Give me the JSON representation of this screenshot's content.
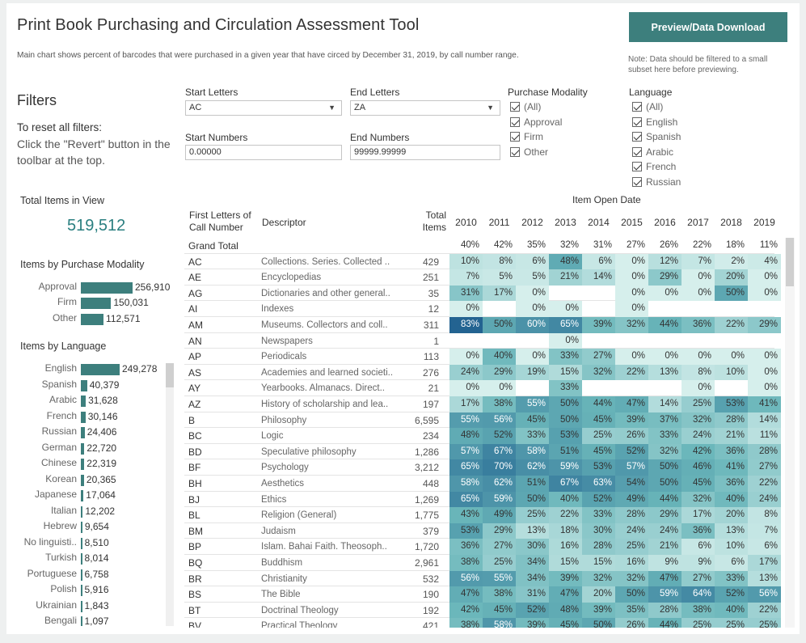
{
  "header": {
    "title": "Print Book Purchasing and Circulation Assessment Tool",
    "subtitle": "Main chart shows percent of barcodes that were purchased in a given year that have circed by December 31, 2019, by call number range.",
    "button_label": "Preview/Data Download",
    "note": "Note: Data should be filtered to a small subset here before previewing."
  },
  "filters": {
    "heading": "Filters",
    "reset_heading": "To reset all filters:",
    "reset_text": "Click the \"Revert\" button in the toolbar at the top.",
    "start_letters_label": "Start Letters",
    "start_letters_value": "AC",
    "end_letters_label": "End Letters",
    "end_letters_value": "ZA",
    "start_numbers_label": "Start Numbers",
    "start_numbers_value": "0.00000",
    "end_numbers_label": "End Numbers",
    "end_numbers_value": "99999.99999",
    "purchase_modality_label": "Purchase Modality",
    "purchase_modality_options": [
      "(All)",
      "Approval",
      "Firm",
      "Other"
    ],
    "language_label": "Language",
    "language_options": [
      "(All)",
      "English",
      "Spanish",
      "Arabic",
      "French",
      "Russian"
    ]
  },
  "summary": {
    "total_items_heading": "Total Items in View",
    "total_items_value": "519,512",
    "modality_heading": "Items by Purchase Modality",
    "modality": [
      {
        "label": "Approval",
        "value": "256,910",
        "n": 256910
      },
      {
        "label": "Firm",
        "value": "150,031",
        "n": 150031
      },
      {
        "label": "Other",
        "value": "112,571",
        "n": 112571
      }
    ],
    "language_heading": "Items by Language",
    "languages": [
      {
        "label": "English",
        "value": "249,278",
        "n": 249278
      },
      {
        "label": "Spanish",
        "value": "40,379",
        "n": 40379
      },
      {
        "label": "Arabic",
        "value": "31,628",
        "n": 31628
      },
      {
        "label": "French",
        "value": "30,146",
        "n": 30146
      },
      {
        "label": "Russian",
        "value": "24,406",
        "n": 24406
      },
      {
        "label": "German",
        "value": "22,720",
        "n": 22720
      },
      {
        "label": "Chinese",
        "value": "22,319",
        "n": 22319
      },
      {
        "label": "Korean",
        "value": "20,365",
        "n": 20365
      },
      {
        "label": "Japanese",
        "value": "17,064",
        "n": 17064
      },
      {
        "label": "Italian",
        "value": "12,202",
        "n": 12202
      },
      {
        "label": "Hebrew",
        "value": "9,654",
        "n": 9654
      },
      {
        "label": "No linguisti..",
        "value": "8,510",
        "n": 8510
      },
      {
        "label": "Turkish",
        "value": "8,014",
        "n": 8014
      },
      {
        "label": "Portuguese",
        "value": "6,758",
        "n": 6758
      },
      {
        "label": "Polish",
        "value": "5,916",
        "n": 5916
      },
      {
        "label": "Ukrainian",
        "value": "1,843",
        "n": 1843
      },
      {
        "label": "Bengali",
        "value": "1,097",
        "n": 1097
      }
    ]
  },
  "table": {
    "group_heading": "Item Open Date",
    "col_first_letters": "First Letters of Call Number",
    "col_descriptor": "Descriptor",
    "col_total": "Total Items",
    "years": [
      "2010",
      "2011",
      "2012",
      "2013",
      "2014",
      "2015",
      "2016",
      "2017",
      "2018",
      "2019"
    ],
    "grand_total": {
      "label": "Grand Total",
      "values": [
        "40%",
        "42%",
        "35%",
        "32%",
        "31%",
        "27%",
        "26%",
        "22%",
        "18%",
        "11%"
      ]
    },
    "rows": [
      {
        "code": "AC",
        "desc": "Collections. Series. Collected ..",
        "total": "429",
        "v": [
          10,
          8,
          6,
          48,
          6,
          0,
          12,
          7,
          2,
          4
        ]
      },
      {
        "code": "AE",
        "desc": "Encyclopedias",
        "total": "251",
        "v": [
          7,
          5,
          5,
          21,
          14,
          0,
          29,
          0,
          20,
          0
        ]
      },
      {
        "code": "AG",
        "desc": "Dictionaries and other general..",
        "total": "35",
        "v": [
          31,
          17,
          0,
          null,
          null,
          0,
          0,
          0,
          50,
          0
        ]
      },
      {
        "code": "AI",
        "desc": "Indexes",
        "total": "12",
        "v": [
          0,
          null,
          0,
          0,
          null,
          0,
          null,
          null,
          null,
          null
        ]
      },
      {
        "code": "AM",
        "desc": "Museums. Collectors and coll..",
        "total": "311",
        "v": [
          83,
          50,
          60,
          65,
          39,
          32,
          44,
          36,
          22,
          29
        ]
      },
      {
        "code": "AN",
        "desc": "Newspapers",
        "total": "1",
        "v": [
          null,
          null,
          null,
          0,
          null,
          null,
          null,
          null,
          null,
          null
        ]
      },
      {
        "code": "AP",
        "desc": "Periodicals",
        "total": "113",
        "v": [
          0,
          40,
          0,
          33,
          27,
          0,
          0,
          0,
          0,
          0
        ]
      },
      {
        "code": "AS",
        "desc": "Academies and learned societi..",
        "total": "276",
        "v": [
          24,
          29,
          19,
          15,
          32,
          22,
          13,
          8,
          10,
          0
        ]
      },
      {
        "code": "AY",
        "desc": "Yearbooks. Almanacs. Direct..",
        "total": "21",
        "v": [
          0,
          0,
          null,
          33,
          null,
          null,
          null,
          0,
          null,
          0
        ]
      },
      {
        "code": "AZ",
        "desc": "History of scholarship and lea..",
        "total": "197",
        "v": [
          17,
          38,
          55,
          50,
          44,
          47,
          14,
          25,
          53,
          41
        ]
      },
      {
        "code": "B",
        "desc": "Philosophy",
        "total": "6,595",
        "v": [
          55,
          56,
          45,
          50,
          45,
          39,
          37,
          32,
          28,
          14
        ]
      },
      {
        "code": "BC",
        "desc": "Logic",
        "total": "234",
        "v": [
          48,
          52,
          33,
          53,
          25,
          26,
          33,
          24,
          21,
          11
        ]
      },
      {
        "code": "BD",
        "desc": "Speculative philosophy",
        "total": "1,286",
        "v": [
          57,
          67,
          58,
          51,
          45,
          52,
          32,
          42,
          36,
          28
        ]
      },
      {
        "code": "BF",
        "desc": "Psychology",
        "total": "3,212",
        "v": [
          65,
          70,
          62,
          59,
          53,
          57,
          50,
          46,
          41,
          27
        ]
      },
      {
        "code": "BH",
        "desc": "Aesthetics",
        "total": "448",
        "v": [
          58,
          62,
          51,
          67,
          63,
          54,
          50,
          45,
          36,
          22
        ]
      },
      {
        "code": "BJ",
        "desc": "Ethics",
        "total": "1,269",
        "v": [
          65,
          59,
          50,
          40,
          52,
          49,
          44,
          32,
          40,
          24
        ]
      },
      {
        "code": "BL",
        "desc": "Religion (General)",
        "total": "1,775",
        "v": [
          43,
          49,
          25,
          22,
          33,
          28,
          29,
          17,
          20,
          8
        ]
      },
      {
        "code": "BM",
        "desc": "Judaism",
        "total": "379",
        "v": [
          53,
          29,
          13,
          18,
          30,
          24,
          24,
          36,
          13,
          7
        ]
      },
      {
        "code": "BP",
        "desc": "Islam. Bahai Faith. Theosoph..",
        "total": "1,720",
        "v": [
          36,
          27,
          30,
          16,
          28,
          25,
          21,
          6,
          10,
          6
        ]
      },
      {
        "code": "BQ",
        "desc": "Buddhism",
        "total": "2,961",
        "v": [
          38,
          25,
          34,
          15,
          15,
          16,
          9,
          9,
          6,
          17
        ]
      },
      {
        "code": "BR",
        "desc": "Christianity",
        "total": "532",
        "v": [
          56,
          55,
          34,
          39,
          32,
          32,
          47,
          27,
          33,
          13
        ]
      },
      {
        "code": "BS",
        "desc": "The Bible",
        "total": "190",
        "v": [
          47,
          38,
          31,
          47,
          20,
          50,
          59,
          64,
          52,
          56
        ]
      },
      {
        "code": "BT",
        "desc": "Doctrinal Theology",
        "total": "192",
        "v": [
          42,
          45,
          52,
          48,
          39,
          35,
          28,
          38,
          40,
          22
        ]
      },
      {
        "code": "BV",
        "desc": "Practical Theology",
        "total": "421",
        "v": [
          38,
          58,
          39,
          45,
          50,
          26,
          44,
          25,
          25,
          25
        ]
      }
    ]
  },
  "colors": {
    "accent": "#3d7f7d",
    "scale_low": "#d6efec",
    "scale_high": "#1f5f8f"
  }
}
